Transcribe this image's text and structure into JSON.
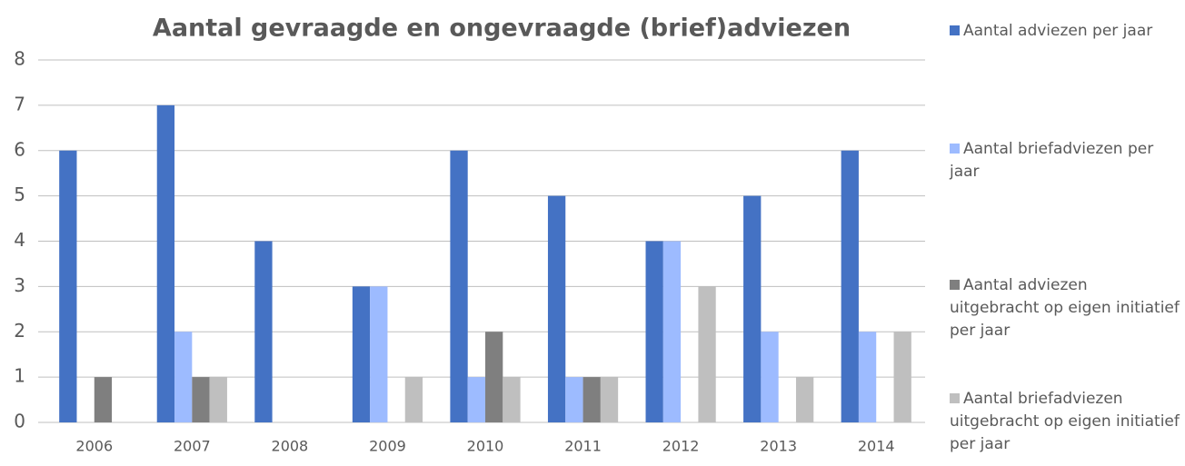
{
  "chart_data": {
    "type": "bar",
    "title": "Aantal gevraagde en ongevraagde (brief)adviezen",
    "categories": [
      "2006",
      "2007",
      "2008",
      "2009",
      "2010",
      "2011",
      "2012",
      "2013",
      "2014"
    ],
    "series": [
      {
        "name": "Aantal adviezen per jaar",
        "color": "#4472c4",
        "values": [
          6,
          7,
          4,
          3,
          6,
          5,
          4,
          5,
          6
        ]
      },
      {
        "name": "Aantal briefadviezen per jaar",
        "color": "#9dbbff",
        "values": [
          0,
          2,
          0,
          3,
          1,
          1,
          4,
          2,
          2
        ]
      },
      {
        "name": "Aantal adviezen uitgebracht op eigen initiatief per jaar",
        "color": "#7f7f7f",
        "values": [
          1,
          1,
          0,
          0,
          2,
          1,
          0,
          0,
          0
        ]
      },
      {
        "name": "Aantal briefadviezen uitgebracht  op eigen initiatief per jaar",
        "color": "#bfbfbf",
        "values": [
          0,
          1,
          0,
          1,
          1,
          1,
          3,
          1,
          2
        ]
      }
    ],
    "ylim": [
      0,
      8
    ],
    "yticks": [
      0,
      1,
      2,
      3,
      4,
      5,
      6,
      7,
      8
    ],
    "grid": true,
    "legend": "right"
  }
}
